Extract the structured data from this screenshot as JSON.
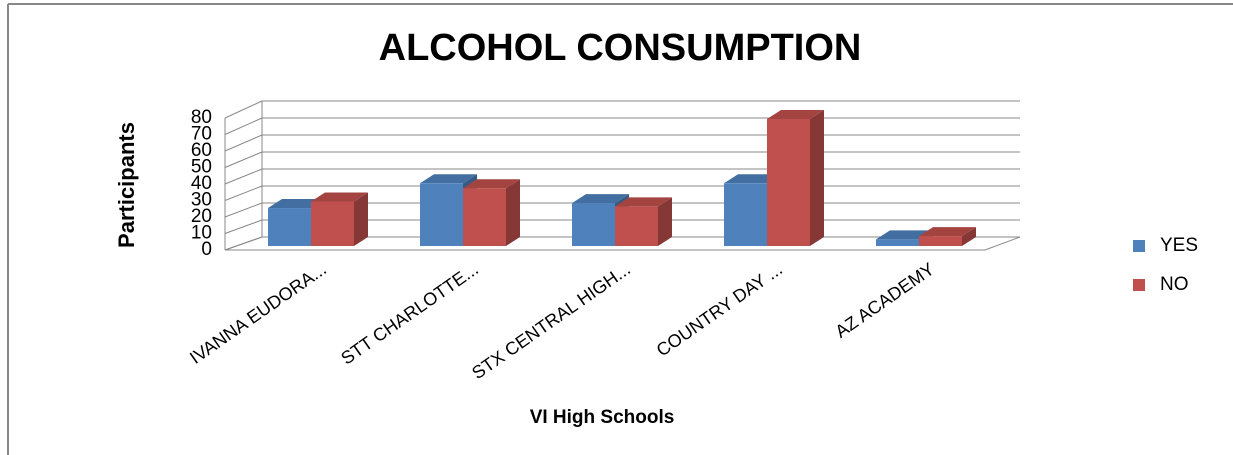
{
  "chart_data": {
    "type": "bar3d",
    "title": "ALCOHOL CONSUMPTION",
    "x_label": "VI High Schools",
    "y_label": "Participants",
    "categories": [
      "IVANNA EUDORA...",
      "STT CHARLOTTE...",
      "STX CENTRAL HIGH...",
      "COUNTRY DAY ...",
      "AZ ACADEMY"
    ],
    "series": [
      {
        "name": "YES",
        "color": "#4f81bd",
        "values": [
          23,
          38,
          26,
          38,
          4
        ]
      },
      {
        "name": "NO",
        "color": "#c0504d",
        "values": [
          27,
          35,
          24,
          77,
          6
        ]
      }
    ],
    "ylim": [
      0,
      80
    ],
    "yticks": [
      0,
      10,
      20,
      30,
      40,
      50,
      60,
      70,
      80
    ],
    "grid": true,
    "legend": "right"
  }
}
